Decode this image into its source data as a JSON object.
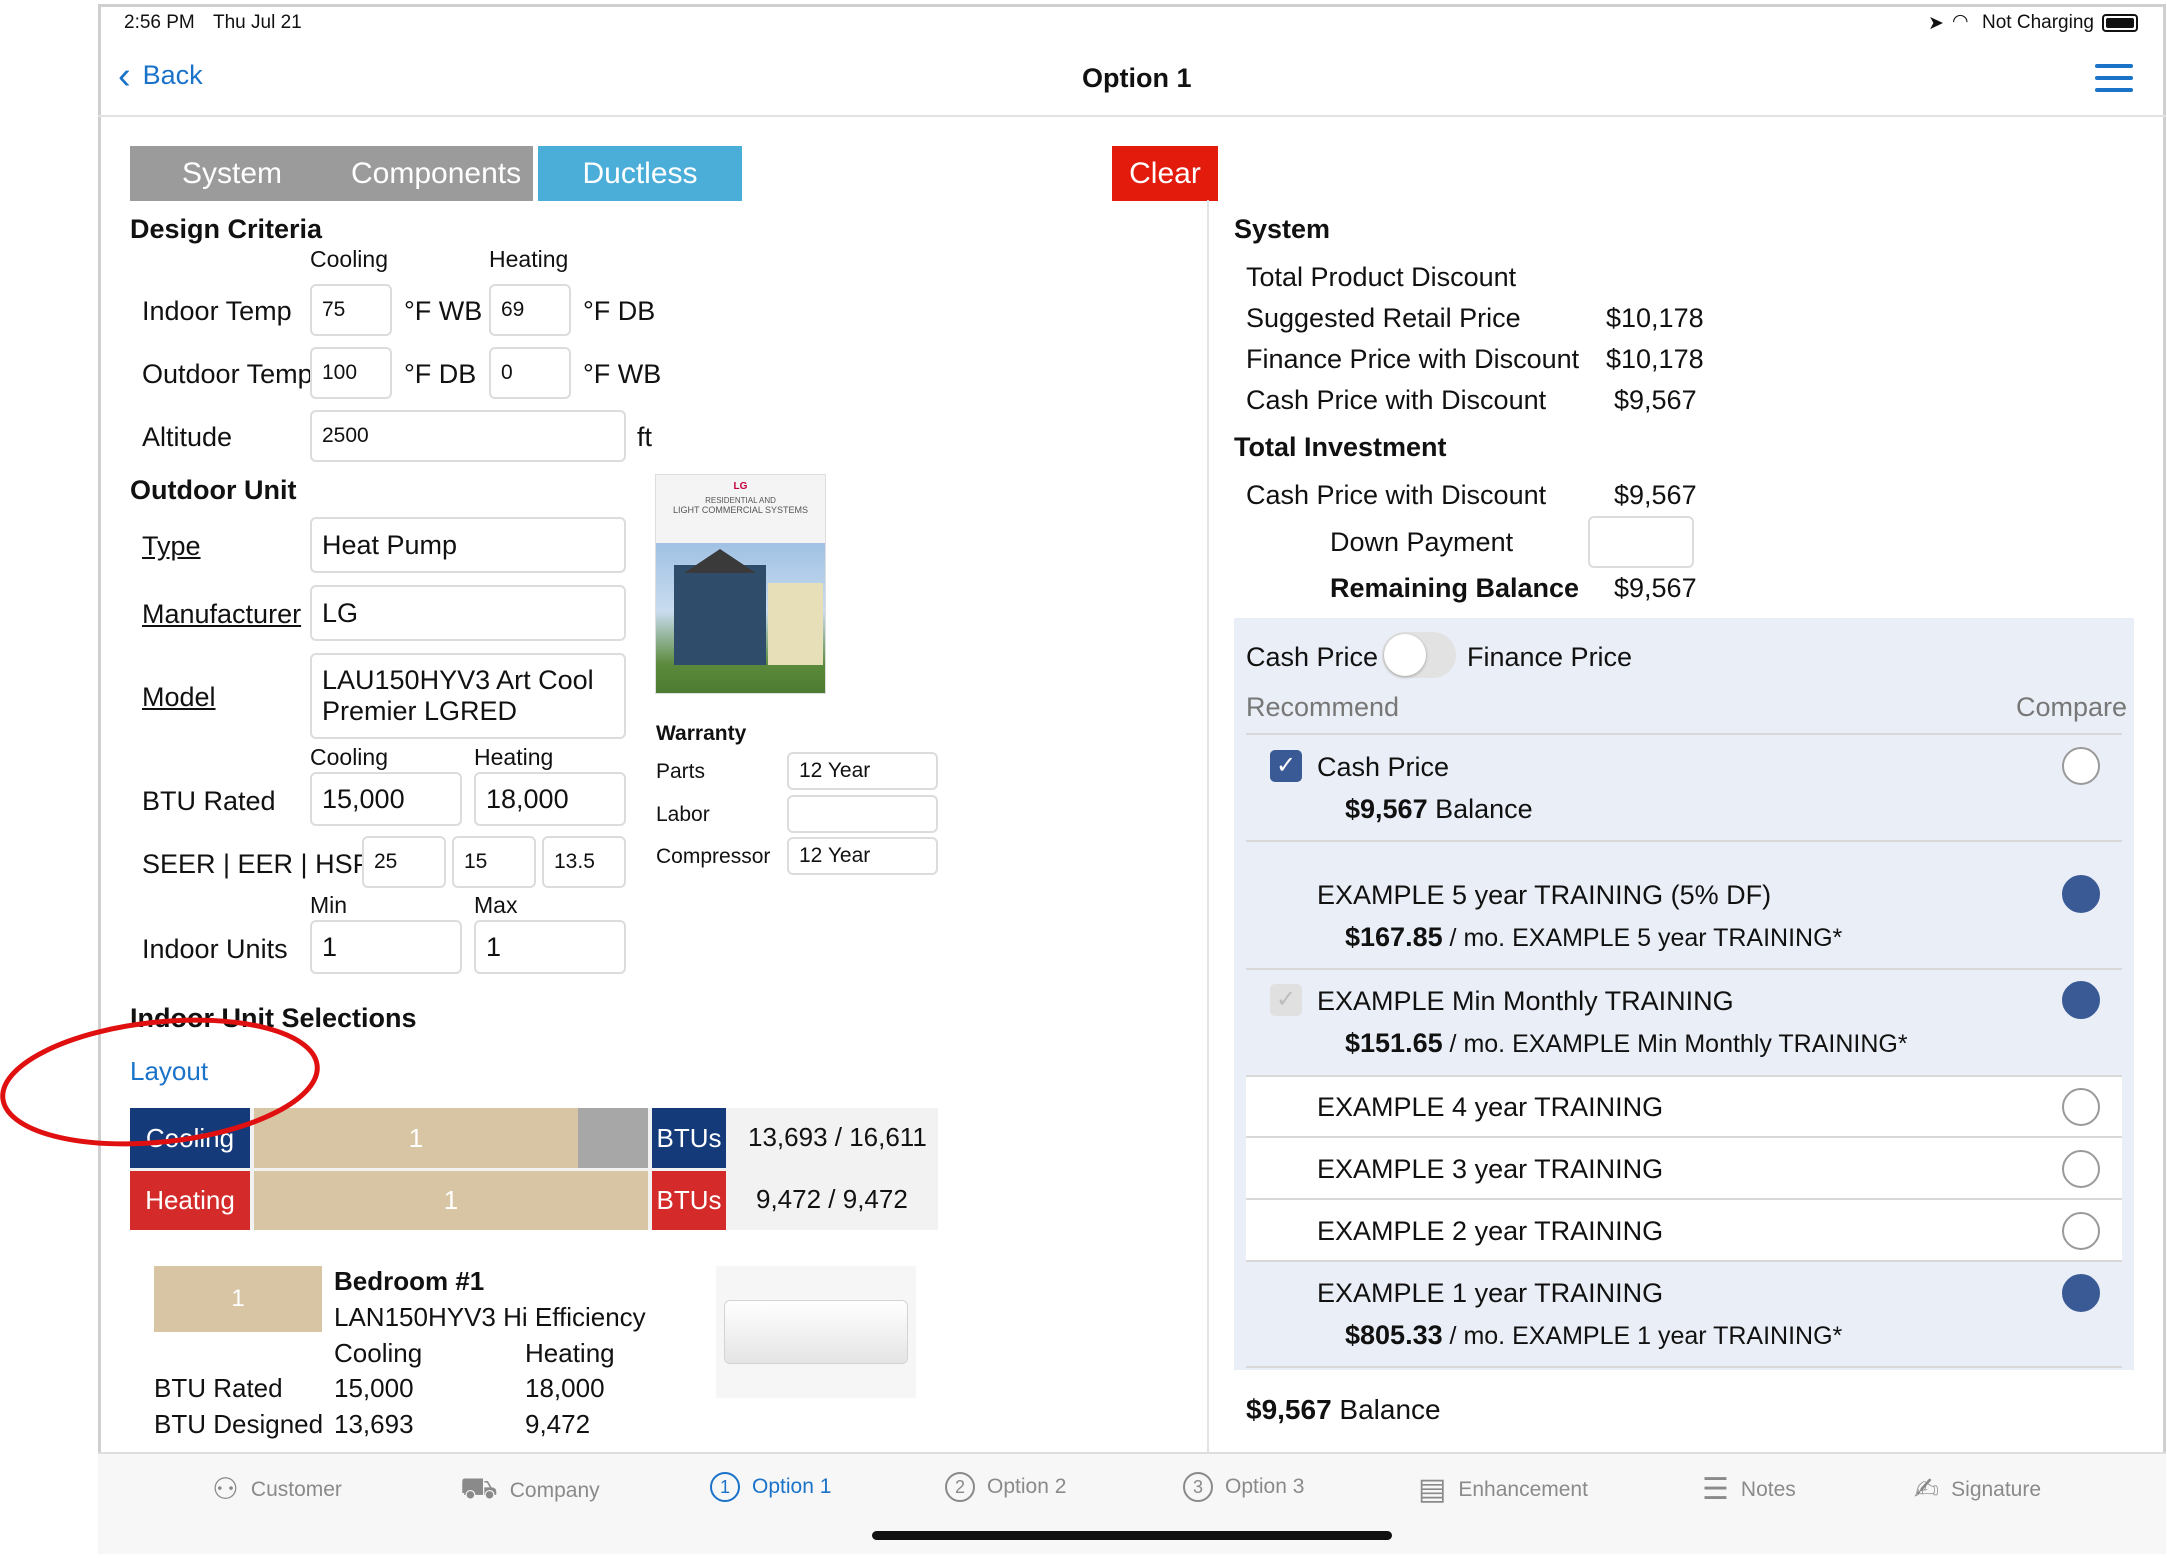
{
  "status": {
    "time": "2:56 PM",
    "date": "Thu Jul 21",
    "battery": "Not Charging"
  },
  "nav": {
    "back": "Back",
    "title": "Option 1"
  },
  "segments": [
    "System",
    "Components",
    "Ductless"
  ],
  "clear": "Clear",
  "design": {
    "title": "Design Criteria",
    "cooling": "Cooling",
    "heating": "Heating",
    "indoor_label": "Indoor Temp",
    "indoor_cool": "75",
    "indoor_cool_unit": "°F WB",
    "indoor_heat": "69",
    "indoor_heat_unit": "°F DB",
    "outdoor_label": "Outdoor Temp",
    "outdoor_cool": "100",
    "outdoor_cool_unit": "°F DB",
    "outdoor_heat": "0",
    "outdoor_heat_unit": "°F WB",
    "altitude_label": "Altitude",
    "altitude": "2500",
    "altitude_unit": "ft"
  },
  "outdoor": {
    "title": "Outdoor Unit",
    "type_label": "Type",
    "type": "Heat Pump",
    "mfr_label": "Manufacturer",
    "mfr": "LG",
    "model_label": "Model",
    "model_1": "LAU150HYV3 Art Cool",
    "model_2": "Premier LGRED",
    "cooling": "Cooling",
    "heating": "Heating",
    "btu_label": "BTU Rated",
    "btu_cool": "15,000",
    "btu_heat": "18,000",
    "seer_label": "SEER | EER | HSPF",
    "seer": "25",
    "eer": "15",
    "hspf": "13.5",
    "min": "Min",
    "max": "Max",
    "indoor_units_label": "Indoor Units",
    "units_min": "1",
    "units_max": "1"
  },
  "brochure": {
    "brand": "LG",
    "line1": "RESIDENTIAL AND",
    "line2": "LIGHT COMMERCIAL SYSTEMS"
  },
  "warranty": {
    "title": "Warranty",
    "parts_label": "Parts",
    "parts": "12 Year",
    "labor_label": "Labor",
    "labor": "",
    "compressor_label": "Compressor",
    "compressor": "12 Year"
  },
  "indoor_sel": {
    "title": "Indoor Unit Selections",
    "layout": "Layout",
    "cooling": "Cooling",
    "heating": "Heating",
    "cool_count": "1",
    "heat_count": "1",
    "btus": "BTUs",
    "cool_btu": "13,693 / 16,611",
    "heat_btu": "9,472 / 9,472"
  },
  "room": {
    "count": "1",
    "name": "Bedroom #1",
    "model": "LAN150HYV3 Hi Efficiency",
    "cooling": "Cooling",
    "heating": "Heating",
    "rated_label": "BTU Rated",
    "rated_cool": "15,000",
    "rated_heat": "18,000",
    "designed_label": "BTU Designed",
    "designed_cool": "13,693",
    "designed_heat": "9,472"
  },
  "system": {
    "title": "System",
    "tpd_label": "Total Product Discount",
    "srp_label": "Suggested Retail Price",
    "srp": "$10,178",
    "fpd_label": "Finance Price with Discount",
    "fpd": "$10,178",
    "cpd_label": "Cash Price with Discount",
    "cpd": "$9,567"
  },
  "investment": {
    "title": "Total Investment",
    "cpd_label": "Cash Price with Discount",
    "cpd": "$9,567",
    "down_label": "Down Payment",
    "down": "",
    "rem_label": "Remaining Balance",
    "rem": "$9,567"
  },
  "pricing": {
    "cash": "Cash Price",
    "finance": "Finance Price",
    "recommend": "Recommend",
    "compare": "Compare"
  },
  "options": [
    {
      "title": "Cash Price",
      "amount": "$9,567",
      "suffix": " Balance"
    },
    {
      "title": "EXAMPLE 5 year TRAINING (5% DF)",
      "amount": "$167.85",
      "suffix": " / mo. EXAMPLE 5 year TRAINING*"
    },
    {
      "title": "EXAMPLE Min Monthly TRAINING",
      "amount": "$151.65",
      "suffix": " / mo. EXAMPLE Min Monthly TRAINING*"
    },
    {
      "title": "EXAMPLE 4 year TRAINING"
    },
    {
      "title": "EXAMPLE 3 year TRAINING"
    },
    {
      "title": "EXAMPLE 2 year TRAINING"
    },
    {
      "title": "EXAMPLE 1 year TRAINING",
      "amount": "$805.33",
      "suffix": " / mo. EXAMPLE 1 year TRAINING*"
    }
  ],
  "footer": {
    "amount": "$9,567",
    "suffix": " Balance"
  },
  "tabs": [
    "Customer",
    "Company",
    "Option 1",
    "Option 2",
    "Option 3",
    "Enhancement",
    "Notes",
    "Signature"
  ],
  "colors": {
    "accent": "#1a73c9",
    "cooling": "#143a7a",
    "heating": "#d42a2a",
    "clear": "#e21b0c",
    "tan": "#d8c5a3"
  }
}
